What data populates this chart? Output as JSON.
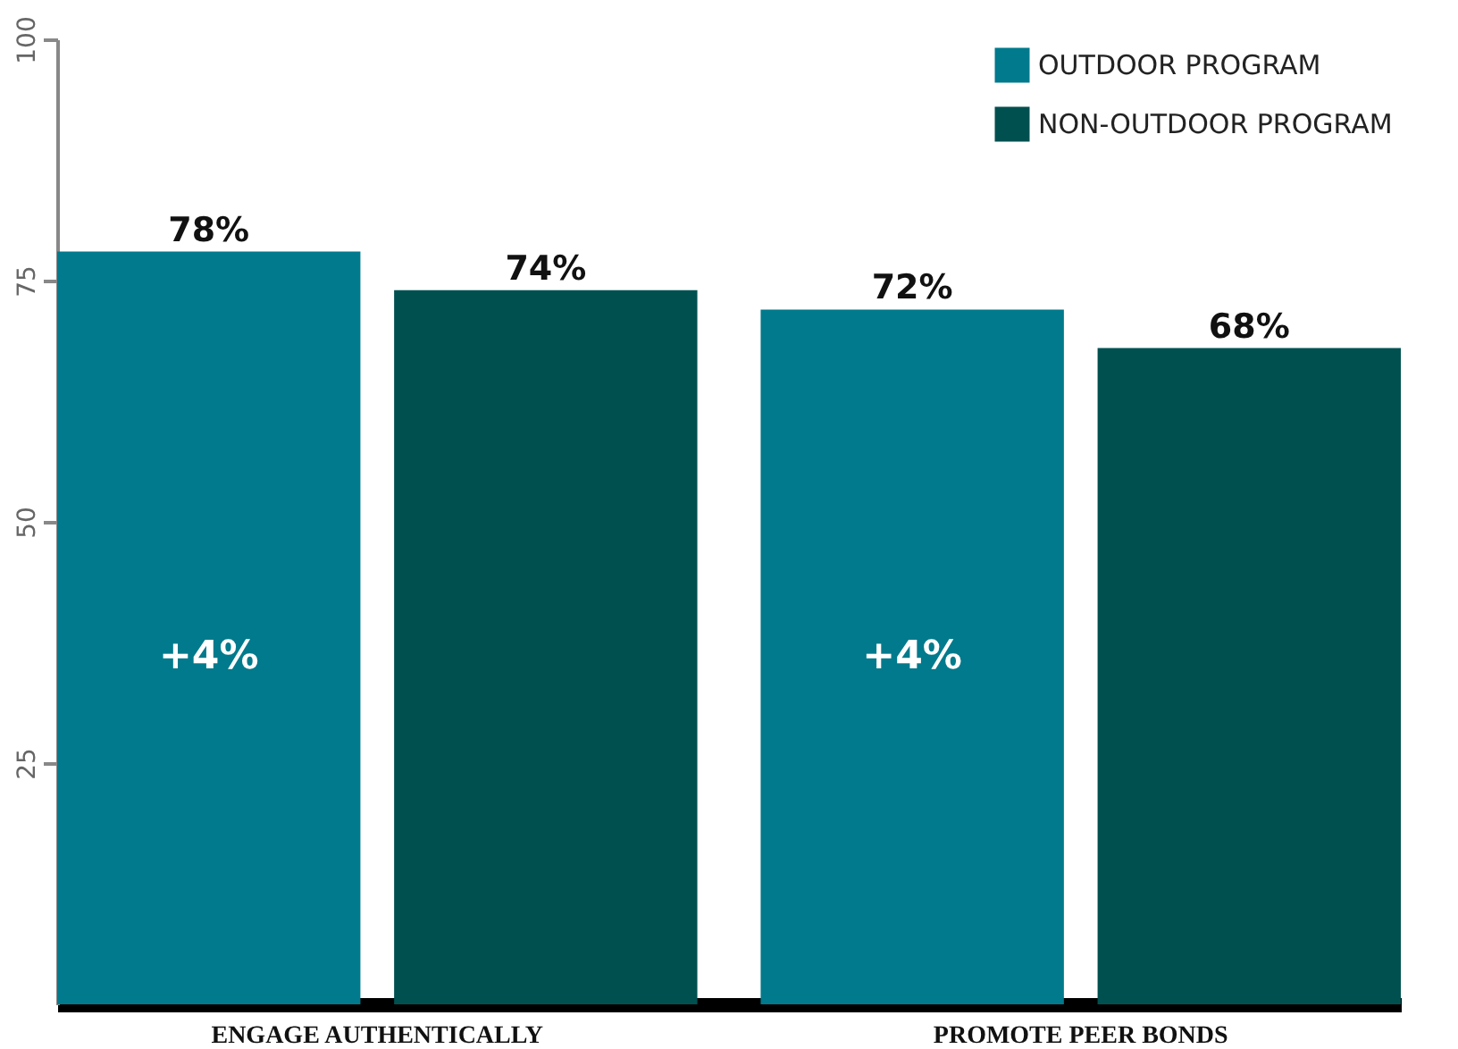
{
  "chart_data": {
    "type": "bar",
    "categories": [
      "ENGAGE AUTHENTICALLY",
      "PROMOTE PEER BONDS"
    ],
    "series": [
      {
        "name": "OUTDOOR PROGRAM",
        "color": "#007a8c",
        "values": [
          78,
          72
        ],
        "value_labels": [
          "78%",
          "72%"
        ]
      },
      {
        "name": "NON-OUTDOOR PROGRAM",
        "color": "#005050",
        "values": [
          74,
          68
        ],
        "value_labels": [
          "74%",
          "68%"
        ]
      }
    ],
    "ylim": [
      0,
      100
    ],
    "yticks": [
      25,
      50,
      75,
      100
    ],
    "grid": false,
    "legend": "top right",
    "annotations": [
      "+4%",
      "+4%"
    ]
  }
}
